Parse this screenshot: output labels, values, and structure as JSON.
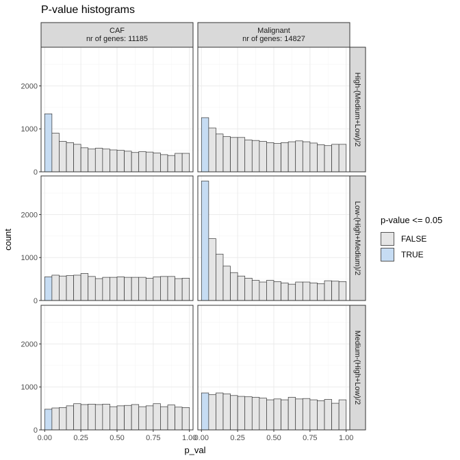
{
  "chart_data": {
    "type": "bar",
    "title": "P-value histograms",
    "xlabel": "p_val",
    "ylabel": "count",
    "xlim": [
      -0.025,
      1.025
    ],
    "ylim": [
      0,
      2900
    ],
    "x_ticks": [
      0.0,
      0.25,
      0.5,
      0.75,
      1.0
    ],
    "x_tick_labels": [
      "0.00",
      "0.25",
      "0.50",
      "0.75",
      "1.00"
    ],
    "y_ticks": [
      0,
      1000,
      2000
    ],
    "y_tick_labels": [
      "0",
      "1000",
      "2000"
    ],
    "bins": 20,
    "bin_width": 0.05,
    "columns": [
      {
        "label": "CAF\nnr of genes: 11185"
      },
      {
        "label": "Malignant\nnr of genes: 14827"
      }
    ],
    "rows": [
      {
        "label": "High-(Medium+Low)/2"
      },
      {
        "label": "Low-(High+Medium)/2"
      },
      {
        "label": "Medium-(High+Low)/2"
      }
    ],
    "panels": [
      {
        "row": 0,
        "col": 0,
        "values": [
          1350,
          900,
          710,
          680,
          640,
          560,
          530,
          550,
          530,
          510,
          500,
          480,
          450,
          470,
          460,
          440,
          400,
          380,
          430,
          430
        ]
      },
      {
        "row": 0,
        "col": 1,
        "values": [
          1260,
          1020,
          880,
          820,
          800,
          800,
          740,
          730,
          710,
          680,
          660,
          680,
          700,
          720,
          700,
          670,
          630,
          610,
          640,
          640
        ]
      },
      {
        "row": 1,
        "col": 0,
        "values": [
          550,
          590,
          570,
          580,
          590,
          630,
          560,
          510,
          540,
          540,
          550,
          540,
          540,
          540,
          520,
          550,
          560,
          560,
          510,
          520
        ]
      },
      {
        "row": 1,
        "col": 1,
        "values": [
          2780,
          1440,
          1080,
          800,
          650,
          570,
          520,
          470,
          430,
          470,
          440,
          410,
          380,
          430,
          430,
          410,
          390,
          460,
          450,
          440
        ]
      },
      {
        "row": 2,
        "col": 0,
        "values": [
          480,
          510,
          520,
          560,
          610,
          590,
          600,
          590,
          600,
          540,
          560,
          570,
          590,
          540,
          560,
          610,
          540,
          580,
          530,
          520
        ]
      },
      {
        "row": 2,
        "col": 1,
        "values": [
          860,
          820,
          860,
          840,
          800,
          780,
          770,
          760,
          740,
          700,
          720,
          700,
          760,
          720,
          730,
          700,
          680,
          710,
          620,
          700
        ]
      }
    ],
    "legend": {
      "title": "p-value <= 0.05",
      "position": "right",
      "entries": [
        {
          "label": "FALSE",
          "color": "#e5e5e5"
        },
        {
          "label": "TRUE",
          "color": "#c6dcf3"
        }
      ]
    },
    "colors": {
      "bar_outline": "#333333",
      "panel_border": "#333333",
      "strip_fill": "#d9d9d9",
      "grid_major": "#ebebeb",
      "grid_minor": "#f5f5f5"
    },
    "grid": true
  }
}
